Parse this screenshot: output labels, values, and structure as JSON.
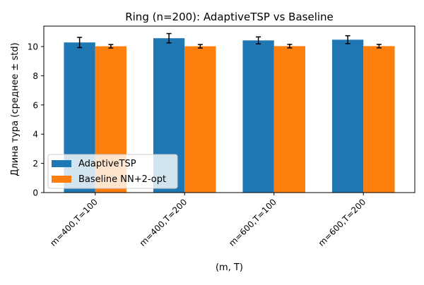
{
  "chart_data": {
    "type": "bar",
    "title": "Ring (n=200): AdaptiveTSP vs Baseline",
    "xlabel": "(m, T)",
    "ylabel": "Длина тура (среднее ± std)",
    "categories": [
      "m=400,T=100",
      "m=400,T=200",
      "m=600,T=100",
      "m=600,T=200"
    ],
    "series": [
      {
        "name": "AdaptiveTSP",
        "color": "#1f77b4",
        "values": [
          10.28,
          10.57,
          10.42,
          10.47
        ],
        "errors": [
          0.35,
          0.32,
          0.24,
          0.27
        ]
      },
      {
        "name": "Baseline NN+2-opt",
        "color": "#ff7f0e",
        "values": [
          10.02,
          10.02,
          10.03,
          10.03
        ],
        "errors": [
          0.12,
          0.12,
          0.12,
          0.12
        ]
      }
    ],
    "ylim": [
      0,
      11.4
    ],
    "yticks": [
      0,
      2,
      4,
      6,
      8,
      10
    ],
    "legend_position": "lower-left",
    "grid": false
  }
}
